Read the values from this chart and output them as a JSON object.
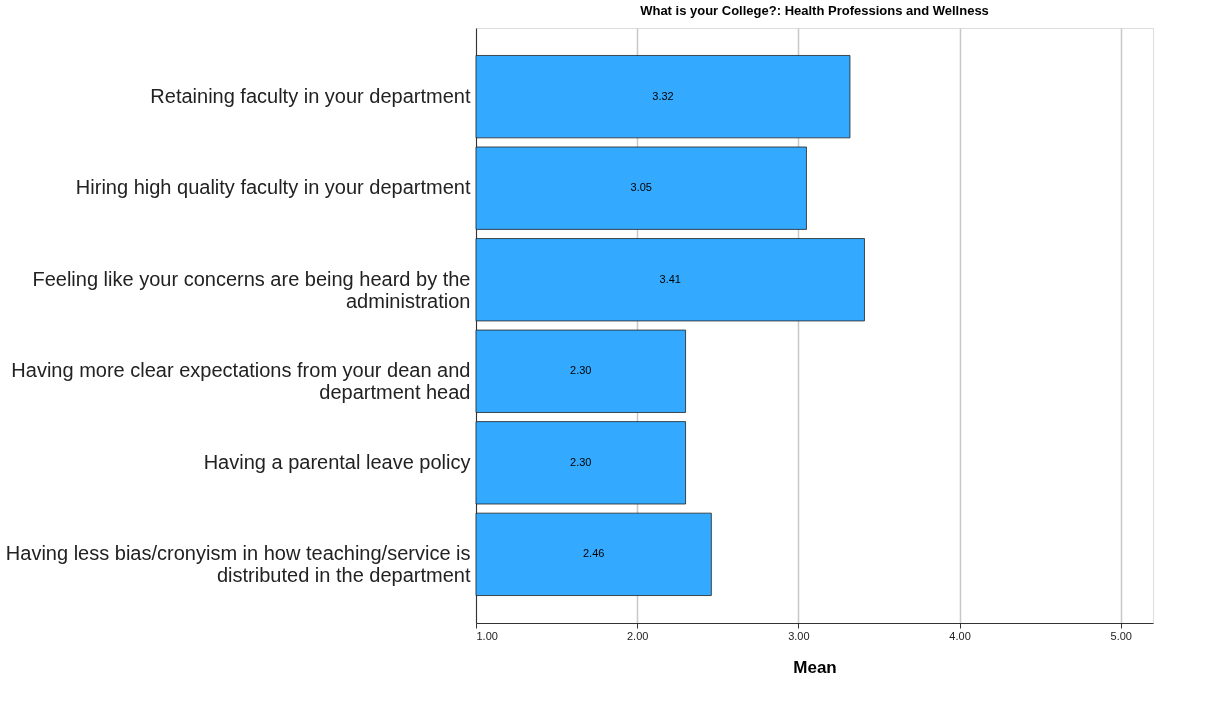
{
  "chart_data": {
    "type": "bar",
    "orientation": "horizontal",
    "title": "What is your College?: Health Professions and Wellness",
    "xlabel": "Mean",
    "categories": [
      "Retaining faculty in your department",
      "Hiring high quality faculty in your department",
      "Feeling like your concerns are being heard by the administration",
      "Having more clear expectations from your dean and department head",
      "Having a parental leave policy",
      "Having less bias/cronyism in how teaching/service is distributed in the department"
    ],
    "values": [
      3.32,
      3.05,
      3.41,
      2.3,
      2.3,
      2.46
    ],
    "value_labels": [
      "3.32",
      "3.05",
      "3.41",
      "2.30",
      "2.30",
      "2.46"
    ],
    "color": "#33aaff",
    "xlim": [
      1,
      5.2
    ],
    "xticks": [
      {
        "value": 1,
        "label": "1.00"
      },
      {
        "value": 2,
        "label": "2.00"
      },
      {
        "value": 3,
        "label": "3.00"
      },
      {
        "value": 4,
        "label": "4.00"
      },
      {
        "value": 5,
        "label": "5.00"
      }
    ],
    "grid": "x"
  }
}
